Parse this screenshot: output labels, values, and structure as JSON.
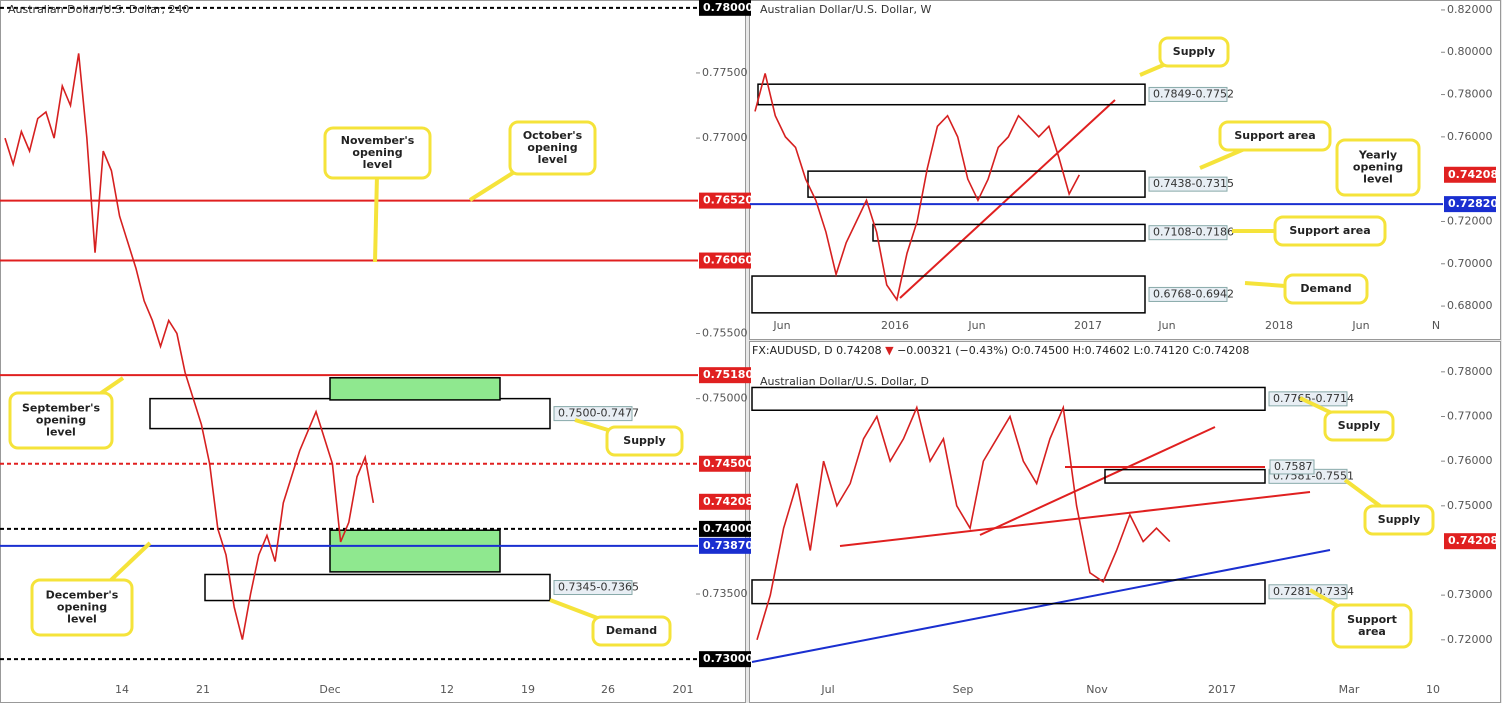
{
  "chart_data": [
    {
      "type": "line",
      "title": "Australian Dollar/U.S. Dollar, 240",
      "color": "#d62020",
      "values": [
        0.77,
        0.768,
        0.7705,
        0.769,
        0.7715,
        0.772,
        0.77,
        0.774,
        0.7725,
        0.7765,
        0.77,
        0.7612,
        0.769,
        0.7675,
        0.764,
        0.762,
        0.76,
        0.7575,
        0.756,
        0.754,
        0.756,
        0.755,
        0.752,
        0.75,
        0.748,
        0.745,
        0.74,
        0.738,
        0.734,
        0.7315,
        0.735,
        0.738,
        0.7395,
        0.7375,
        0.742,
        0.744,
        0.746,
        0.7475,
        0.749,
        0.747,
        0.745,
        0.739,
        0.7405,
        0.744,
        0.7455,
        0.742
      ],
      "ylim": [
        0.7284,
        0.7806
      ],
      "yticks": [
        {
          "value": 0.775,
          "label": "0.77500"
        },
        {
          "value": 0.77,
          "label": "0.77000"
        },
        {
          "value": 0.755,
          "label": "0.75500"
        },
        {
          "value": 0.75,
          "label": "0.75000"
        },
        {
          "value": 0.735,
          "label": "0.73500"
        }
      ],
      "xtick_labels": [
        "14",
        "21",
        "Dec",
        "12",
        "19",
        "26",
        "201"
      ],
      "levels": [
        {
          "value": 0.78,
          "label": "0.78000",
          "color": "#000000",
          "style": "dashed"
        },
        {
          "value": 0.7652,
          "label": "0.76520",
          "color": "#e02020",
          "style": "solid"
        },
        {
          "value": 0.7606,
          "label": "0.76060",
          "color": "#e02020",
          "style": "solid"
        },
        {
          "value": 0.7518,
          "label": "0.75180",
          "color": "#e02020",
          "style": "solid"
        },
        {
          "value": 0.745,
          "label": "0.74500",
          "color": "#e02020",
          "style": "dashed"
        },
        {
          "value": 0.74208,
          "label": "0.74208",
          "color": "#e02020",
          "style": "none"
        },
        {
          "value": 0.74,
          "label": "0.74000",
          "color": "#000000",
          "style": "dashed"
        },
        {
          "value": 0.7387,
          "label": "0.73870",
          "color": "#1a2fd0",
          "style": "solid"
        },
        {
          "value": 0.73,
          "label": "0.73000",
          "color": "#000000",
          "style": "dashed"
        }
      ],
      "zones": [
        {
          "range": [
            0.75,
            0.7477
          ],
          "label": "0.7500-0.7477"
        },
        {
          "range": [
            0.7365,
            0.7345
          ],
          "label": "0.7345-0.7365"
        },
        {
          "range": [
            0.7516,
            0.7499
          ],
          "fill": "#8fe88f"
        },
        {
          "range": [
            0.7399,
            0.7367
          ],
          "fill": "#8fe88f"
        }
      ],
      "callouts": [
        [
          "November's",
          "opening",
          "level"
        ],
        [
          "October's",
          "opening",
          "level"
        ],
        [
          "September's",
          "opening",
          "level"
        ],
        [
          "December's",
          "opening",
          "level"
        ],
        [
          "Supply"
        ],
        [
          "Demand"
        ]
      ]
    },
    {
      "type": "line",
      "title": "Australian Dollar/U.S. Dollar, W",
      "color": "#d62020",
      "values": [
        0.772,
        0.79,
        0.77,
        0.76,
        0.755,
        0.74,
        0.73,
        0.715,
        0.695,
        0.71,
        0.72,
        0.73,
        0.715,
        0.69,
        0.683,
        0.705,
        0.72,
        0.745,
        0.765,
        0.77,
        0.76,
        0.74,
        0.73,
        0.74,
        0.755,
        0.76,
        0.77,
        0.765,
        0.76,
        0.765,
        0.75,
        0.733,
        0.742
      ],
      "ylim": [
        0.6772,
        0.8247
      ],
      "yticks": [
        {
          "value": 0.82,
          "label": "0.82000"
        },
        {
          "value": 0.8,
          "label": "0.80000"
        },
        {
          "value": 0.78,
          "label": "0.78000"
        },
        {
          "value": 0.76,
          "label": "0.76000"
        },
        {
          "value": 0.72,
          "label": "0.72000"
        },
        {
          "value": 0.7,
          "label": "0.70000"
        },
        {
          "value": 0.68,
          "label": "0.68000"
        }
      ],
      "xtick_labels": [
        "Jun",
        "2016",
        "Jun",
        "2017",
        "Jun",
        "2018",
        "Jun",
        "N"
      ],
      "levels": [
        {
          "value": 0.74208,
          "label": "0.74208",
          "color": "#e02020",
          "style": "none"
        },
        {
          "value": 0.7282,
          "label": "0.72820",
          "color": "#1a2fd0",
          "style": "solid"
        }
      ],
      "zones": [
        {
          "range": [
            0.7849,
            0.7752
          ],
          "label": "0.7849-0.7752"
        },
        {
          "range": [
            0.7438,
            0.7315
          ],
          "label": "0.7438-0.7315"
        },
        {
          "range": [
            0.7186,
            0.7108
          ],
          "label": "0.7108-0.7186"
        },
        {
          "range": [
            0.6942,
            0.6768
          ],
          "label": "0.6768-0.6942"
        }
      ],
      "callouts": [
        [
          "Supply"
        ],
        [
          "Support area"
        ],
        [
          "Yearly",
          "opening",
          "level"
        ],
        [
          "Support area"
        ],
        [
          "Demand"
        ]
      ]
    },
    {
      "type": "line",
      "title": "Australian Dollar/U.S. Dollar, D",
      "color": "#d62020",
      "header": {
        "symbol": "FX:AUDUSD, D",
        "last": "0.74208",
        "arrow": "▼",
        "change": "−0.00321 (−0.43%)",
        "ohlc": [
          "O:0.74500",
          "H:0.74602",
          "L:0.74120",
          "C:0.74208"
        ]
      },
      "values": [
        0.72,
        0.73,
        0.745,
        0.755,
        0.74,
        0.76,
        0.75,
        0.755,
        0.765,
        0.77,
        0.76,
        0.765,
        0.772,
        0.76,
        0.765,
        0.75,
        0.745,
        0.76,
        0.765,
        0.77,
        0.76,
        0.755,
        0.765,
        0.772,
        0.75,
        0.735,
        0.733,
        0.74,
        0.748,
        0.742,
        0.745,
        0.742
      ],
      "ylim": [
        0.711,
        0.7822
      ],
      "yticks": [
        {
          "value": 0.78,
          "label": "0.78000"
        },
        {
          "value": 0.77,
          "label": "0.77000"
        },
        {
          "value": 0.76,
          "label": "0.76000"
        },
        {
          "value": 0.75,
          "label": "0.75000"
        },
        {
          "value": 0.73,
          "label": "0.73000"
        },
        {
          "value": 0.72,
          "label": "0.72000"
        }
      ],
      "xtick_labels": [
        "Jul",
        "Sep",
        "Nov",
        "2017",
        "Mar",
        "10"
      ],
      "levels": [
        {
          "value": 0.74208,
          "label": "0.74208",
          "color": "#e02020",
          "style": "none"
        }
      ],
      "marker_lines": [
        {
          "value": 0.7587,
          "label": "0.7587",
          "color": "#e02020"
        }
      ],
      "zones": [
        {
          "range": [
            0.7765,
            0.7714
          ],
          "label": "0.7765-0.7714"
        },
        {
          "range": [
            0.7581,
            0.7551
          ],
          "label": "0.7581-0.7551"
        },
        {
          "range": [
            0.7334,
            0.7281
          ],
          "label": "0.7281-0.7334"
        }
      ],
      "callouts": [
        [
          "Supply"
        ],
        [
          "Supply"
        ],
        [
          "Support",
          "area"
        ]
      ]
    }
  ]
}
